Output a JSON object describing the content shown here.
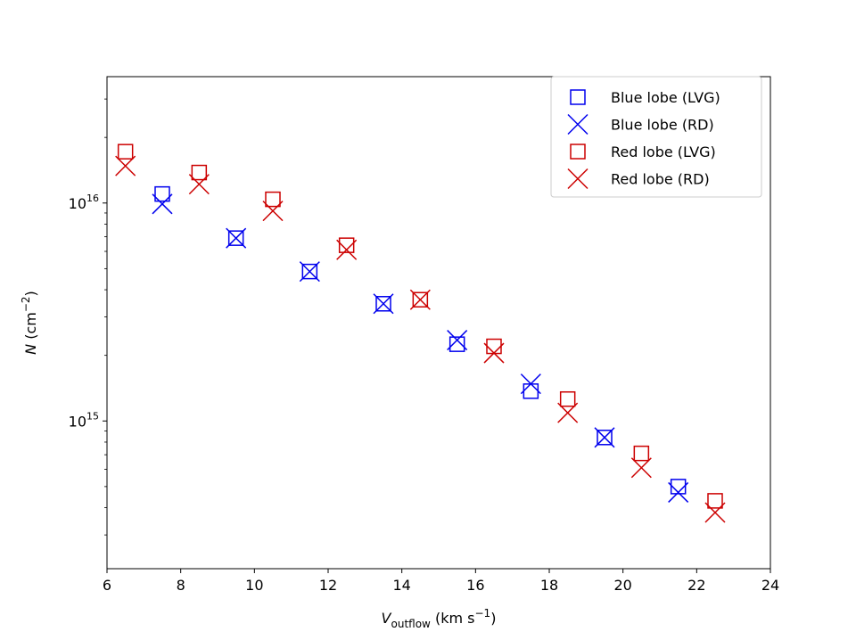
{
  "chart_data": {
    "type": "scatter",
    "title": "",
    "xlabel": {
      "main": "V",
      "sub": "outflow",
      "unit": " (km s",
      "sup": "−1",
      "close": ")"
    },
    "ylabel": {
      "main": "N",
      "unit": " (cm",
      "sup": "−2",
      "close": ")"
    },
    "xlim": [
      6,
      24
    ],
    "ylim": [
      210000000000000.0,
      3.8e+16
    ],
    "yscale": "log",
    "x_ticks": [
      "6",
      "8",
      "10",
      "12",
      "14",
      "16",
      "18",
      "20",
      "22",
      "24"
    ],
    "y_ticks": [
      {
        "base": "10",
        "exp": "16",
        "value": 1e+16
      },
      {
        "base": "10",
        "exp": "15",
        "value": 1000000000000000.0
      }
    ],
    "grid": false,
    "legend_position": "top-right",
    "colors": {
      "blue": "#0000ee",
      "red": "#cc0000"
    },
    "series": [
      {
        "name": "Blue lobe (LVG)",
        "marker": "square",
        "color": "#0000ee",
        "x": [
          7.5,
          9.5,
          11.5,
          13.5,
          15.5,
          17.5,
          19.5,
          21.5
        ],
        "y": [
          1.1e+16,
          6900000000000000.0,
          4850000000000000.0,
          3450000000000000.0,
          2250000000000000.0,
          1370000000000000.0,
          840000000000000.0,
          500000000000000.0
        ]
      },
      {
        "name": "Blue lobe (RD)",
        "marker": "x",
        "color": "#0000ee",
        "x": [
          7.5,
          9.5,
          11.5,
          13.5,
          15.5,
          17.5,
          19.5,
          21.5
        ],
        "y": [
          9900000000000000.0,
          6900000000000000.0,
          4850000000000000.0,
          3450000000000000.0,
          2350000000000000.0,
          1480000000000000.0,
          840000000000000.0,
          470000000000000.0
        ]
      },
      {
        "name": "Red lobe (LVG)",
        "marker": "square",
        "color": "#cc0000",
        "x": [
          6.5,
          8.5,
          10.5,
          12.5,
          14.5,
          16.5,
          18.5,
          20.5,
          22.5
        ],
        "y": [
          1.72e+16,
          1.38e+16,
          1.04e+16,
          6400000000000000.0,
          3600000000000000.0,
          2200000000000000.0,
          1260000000000000.0,
          710000000000000.0,
          430000000000000.0
        ]
      },
      {
        "name": "Red lobe (RD)",
        "marker": "x",
        "color": "#cc0000",
        "x": [
          6.5,
          8.5,
          10.5,
          12.5,
          14.5,
          16.5,
          18.5,
          20.5,
          22.5
        ],
        "y": [
          1.48e+16,
          1.22e+16,
          9200000000000000.0,
          6100000000000000.0,
          3600000000000000.0,
          2050000000000000.0,
          1090000000000000.0,
          610000000000000.0,
          380000000000000.0
        ]
      }
    ]
  }
}
